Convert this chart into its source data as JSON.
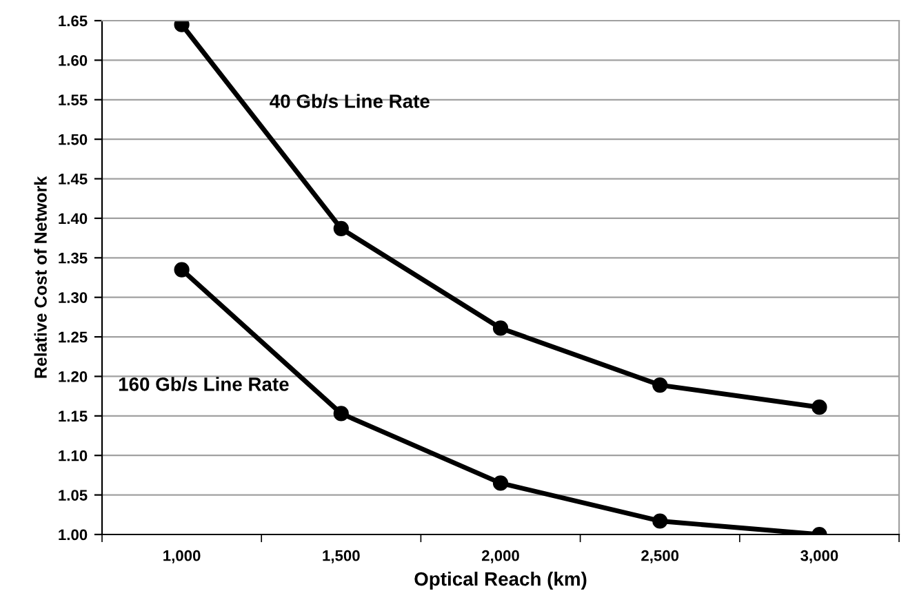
{
  "chart_data": {
    "type": "line",
    "xlabel": "Optical Reach (km)",
    "ylabel": "Relative Cost of Network",
    "categories": [
      "1,000",
      "1,500",
      "2,000",
      "2,500",
      "3,000"
    ],
    "series": [
      {
        "name": "40 Gb/s Line Rate",
        "color": "#000000",
        "values": [
          1.645,
          1.387,
          1.261,
          1.189,
          1.161
        ]
      },
      {
        "name": "160 Gb/s Line Rate",
        "color": "#000000",
        "values": [
          1.335,
          1.153,
          1.065,
          1.017,
          1.0
        ]
      }
    ],
    "ylim": [
      1.0,
      1.65
    ],
    "yticks": [
      {
        "value": 1.0,
        "label": "1.00"
      },
      {
        "value": 1.05,
        "label": "1.05"
      },
      {
        "value": 1.1,
        "label": "1.10"
      },
      {
        "value": 1.15,
        "label": "1.15"
      },
      {
        "value": 1.2,
        "label": "1.20"
      },
      {
        "value": 1.25,
        "label": "1.25"
      },
      {
        "value": 1.3,
        "label": "1.30"
      },
      {
        "value": 1.35,
        "label": "1.35"
      },
      {
        "value": 1.4,
        "label": "1.40"
      },
      {
        "value": 1.45,
        "label": "1.45"
      },
      {
        "value": 1.5,
        "label": "1.50"
      },
      {
        "value": 1.55,
        "label": "1.55"
      },
      {
        "value": 1.6,
        "label": "1.60"
      },
      {
        "value": 1.65,
        "label": "1.65"
      }
    ],
    "grid": "y",
    "marker": "circle",
    "line_style": "solid",
    "legend": false
  }
}
